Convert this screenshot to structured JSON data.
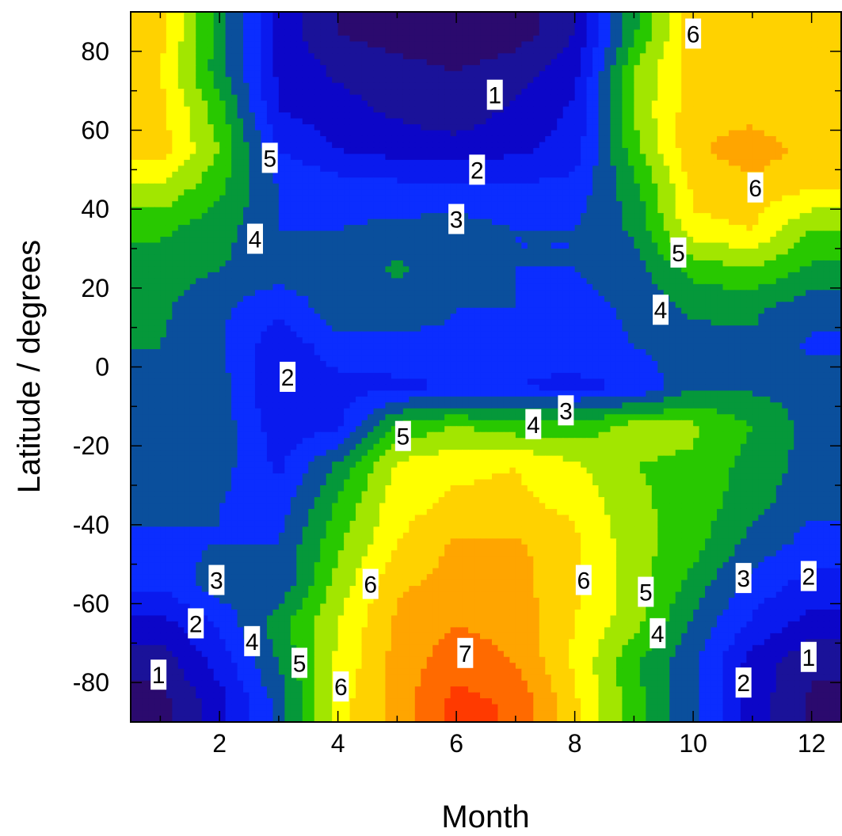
{
  "chart_data": {
    "type": "heatmap",
    "subtype": "filled-contour",
    "title": "",
    "xlabel": "Month",
    "ylabel": "Latitude / degrees",
    "xlim": [
      0.5,
      12.5
    ],
    "ylim": [
      -90,
      90
    ],
    "x_ticks": [
      2,
      4,
      6,
      8,
      10,
      12
    ],
    "x_tick_labels": [
      "2",
      "4",
      "6",
      "8",
      "10",
      "12"
    ],
    "y_ticks": [
      80,
      60,
      40,
      20,
      0,
      -20,
      -40,
      -60,
      -80
    ],
    "y_tick_labels": [
      "80",
      "60",
      "40",
      "20",
      "0",
      "-20",
      "-40",
      "-60",
      "-80"
    ],
    "grid": false,
    "legend": "none",
    "contour_interval": 0.5,
    "level_colors": [
      {
        "level": 0.5,
        "color": "#2b0a6e"
      },
      {
        "level": 1.0,
        "color": "#1a1299"
      },
      {
        "level": 1.5,
        "color": "#0c06c8"
      },
      {
        "level": 2.0,
        "color": "#0a1aee"
      },
      {
        "level": 2.5,
        "color": "#0b2dff"
      },
      {
        "level": 3.0,
        "color": "#0a4f9c"
      },
      {
        "level": 3.5,
        "color": "#05983a"
      },
      {
        "level": 4.0,
        "color": "#28c800"
      },
      {
        "level": 4.5,
        "color": "#a2e600"
      },
      {
        "level": 5.0,
        "color": "#ffff00"
      },
      {
        "level": 5.5,
        "color": "#ffd200"
      },
      {
        "level": 6.0,
        "color": "#ffa500"
      },
      {
        "level": 6.5,
        "color": "#ff6a00"
      },
      {
        "level": 7.0,
        "color": "#ff3a00"
      }
    ],
    "x": [
      1,
      2,
      3,
      4,
      5,
      6,
      7,
      8,
      9,
      10,
      11,
      12
    ],
    "y": [
      85,
      75,
      65,
      55,
      45,
      35,
      25,
      15,
      5,
      -5,
      -15,
      -25,
      -35,
      -45,
      -55,
      -65,
      -75,
      -85
    ],
    "z": [
      [
        5.7,
        3.8,
        1.8,
        1.0,
        0.7,
        0.6,
        0.7,
        1.5,
        3.9,
        5.8,
        5.8,
        5.8
      ],
      [
        5.5,
        3.7,
        1.9,
        1.4,
        1.2,
        1.0,
        1.3,
        1.8,
        4.5,
        5.8,
        5.8,
        5.7
      ],
      [
        5.7,
        4.2,
        2.0,
        1.7,
        1.4,
        1.2,
        1.6,
        2.1,
        4.6,
        5.8,
        5.8,
        5.6
      ],
      [
        5.7,
        4.5,
        2.5,
        2.0,
        1.8,
        1.7,
        1.9,
        2.2,
        4.3,
        5.9,
        6.3,
        5.8
      ],
      [
        4.9,
        4.1,
        3.0,
        2.8,
        2.7,
        2.7,
        2.6,
        2.7,
        3.8,
        5.6,
        5.8,
        5.5
      ],
      [
        4.1,
        3.7,
        3.0,
        3.0,
        3.1,
        3.2,
        3.0,
        3.0,
        3.6,
        5.4,
        5.5,
        4.5
      ],
      [
        3.8,
        3.5,
        3.3,
        3.2,
        3.6,
        3.1,
        3.0,
        3.0,
        3.3,
        4.2,
        4.5,
        3.9
      ],
      [
        3.6,
        3.1,
        2.6,
        3.3,
        3.3,
        3.0,
        3.0,
        2.8,
        3.1,
        3.6,
        3.6,
        3.2
      ],
      [
        3.5,
        3.1,
        2.1,
        2.8,
        2.8,
        2.9,
        2.6,
        2.7,
        3.0,
        3.3,
        3.4,
        2.9
      ],
      [
        3.3,
        3.2,
        2.0,
        2.3,
        2.4,
        2.5,
        2.5,
        2.4,
        2.5,
        3.4,
        3.4,
        3.3
      ],
      [
        3.3,
        3.3,
        2.2,
        2.4,
        4.1,
        4.5,
        4.2,
        4.2,
        4.7,
        4.6,
        4.0,
        3.3
      ],
      [
        3.2,
        3.2,
        2.4,
        3.6,
        5.1,
        5.4,
        5.5,
        5.1,
        4.5,
        4.4,
        3.8,
        3.3
      ],
      [
        3.1,
        3.0,
        2.7,
        4.1,
        5.3,
        5.6,
        5.6,
        5.4,
        4.6,
        4.3,
        3.7,
        3.1
      ],
      [
        2.9,
        3.0,
        3.0,
        4.4,
        5.5,
        6.1,
        6.1,
        5.6,
        4.7,
        4.2,
        3.3,
        2.8
      ],
      [
        2.6,
        3.3,
        3.1,
        4.7,
        5.9,
        6.2,
        6.2,
        5.6,
        4.8,
        3.8,
        2.8,
        2.3
      ],
      [
        1.8,
        2.6,
        3.8,
        5.0,
        6.1,
        6.5,
        6.3,
        5.5,
        4.7,
        3.4,
        2.4,
        1.8
      ],
      [
        1.2,
        2.2,
        3.5,
        5.1,
        6.2,
        6.8,
        6.5,
        5.4,
        4.1,
        3.1,
        1.8,
        1.1
      ],
      [
        0.8,
        1.8,
        3.2,
        5.3,
        6.2,
        7.2,
        6.9,
        5.6,
        4.2,
        3.1,
        1.8,
        0.9
      ]
    ],
    "contour_labels": [
      {
        "text": "1",
        "x": 6.65,
        "y": 69
      },
      {
        "text": "2",
        "x": 6.35,
        "y": 50
      },
      {
        "text": "3",
        "x": 6.0,
        "y": 37.5
      },
      {
        "text": "6",
        "x": 10.0,
        "y": 84.5
      },
      {
        "text": "6",
        "x": 11.05,
        "y": 45.5
      },
      {
        "text": "5",
        "x": 9.75,
        "y": 29
      },
      {
        "text": "4",
        "x": 9.45,
        "y": 14.5
      },
      {
        "text": "5",
        "x": 2.85,
        "y": 53
      },
      {
        "text": "4",
        "x": 2.6,
        "y": 32.5
      },
      {
        "text": "2",
        "x": 3.15,
        "y": -2.5
      },
      {
        "text": "3",
        "x": 7.85,
        "y": -11
      },
      {
        "text": "4",
        "x": 7.3,
        "y": -14.5
      },
      {
        "text": "5",
        "x": 5.1,
        "y": -17.5
      },
      {
        "text": "6",
        "x": 4.55,
        "y": -55
      },
      {
        "text": "6",
        "x": 8.15,
        "y": -54
      },
      {
        "text": "5",
        "x": 9.2,
        "y": -57
      },
      {
        "text": "4",
        "x": 9.4,
        "y": -67.5
      },
      {
        "text": "7",
        "x": 6.15,
        "y": -72.5
      },
      {
        "text": "5",
        "x": 3.35,
        "y": -75
      },
      {
        "text": "6",
        "x": 4.05,
        "y": -81
      },
      {
        "text": "4",
        "x": 2.55,
        "y": -69.5
      },
      {
        "text": "3",
        "x": 1.95,
        "y": -54
      },
      {
        "text": "2",
        "x": 1.6,
        "y": -65
      },
      {
        "text": "1",
        "x": 0.97,
        "y": -78
      },
      {
        "text": "3",
        "x": 10.85,
        "y": -53.5
      },
      {
        "text": "2",
        "x": 11.95,
        "y": -53
      },
      {
        "text": "2",
        "x": 10.85,
        "y": -80
      },
      {
        "text": "1",
        "x": 11.95,
        "y": -73.5
      }
    ]
  }
}
